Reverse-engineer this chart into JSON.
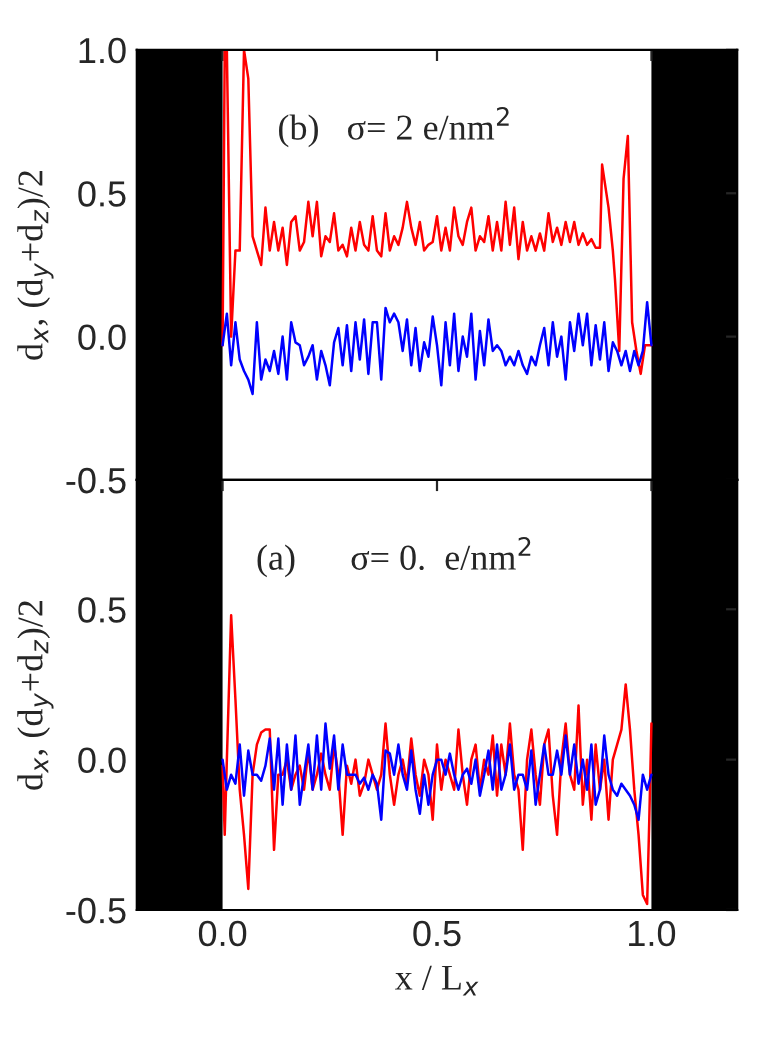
{
  "chart_data": [
    {
      "type": "line",
      "annotations": [
        "(b)   σ= 2 e/nm$^{2}$"
      ],
      "ylabel": "d$_{x}$, (d$_{y}$+d$_{z}$)/2",
      "xlim": [
        -0.2,
        1.2
      ],
      "xticks": [
        0.0,
        0.5,
        1.0
      ],
      "ylim": [
        -0.5,
        1.0
      ],
      "yticks": [
        {
          "value": -0.5,
          "label": "-0.5"
        },
        {
          "value": 0.0,
          "label": "0.0"
        },
        {
          "value": 0.5,
          "label": "0.5"
        },
        {
          "value": 1.0,
          "label": "1.0"
        }
      ],
      "tick_labels": "y",
      "grid": false,
      "legend": false,
      "bands": [
        {
          "axis": "x",
          "from": -0.2,
          "to": 0.0,
          "color": "#000000"
        },
        {
          "axis": "x",
          "from": 1.0,
          "to": 1.2,
          "color": "#000000"
        }
      ],
      "x": [
        0.0,
        0.01,
        0.02,
        0.03,
        0.04,
        0.05,
        0.06,
        0.07,
        0.08,
        0.09,
        0.1,
        0.11,
        0.12,
        0.13,
        0.14,
        0.15,
        0.16,
        0.17,
        0.18,
        0.19,
        0.2,
        0.21,
        0.22,
        0.23,
        0.24,
        0.25,
        0.26,
        0.27,
        0.28,
        0.29,
        0.3,
        0.31,
        0.32,
        0.33,
        0.34,
        0.35,
        0.36,
        0.37,
        0.38,
        0.39,
        0.4,
        0.41,
        0.42,
        0.43,
        0.44,
        0.45,
        0.46,
        0.47,
        0.48,
        0.49,
        0.5,
        0.51,
        0.52,
        0.53,
        0.54,
        0.55,
        0.56,
        0.57,
        0.58,
        0.59,
        0.6,
        0.61,
        0.62,
        0.63,
        0.64,
        0.65,
        0.66,
        0.67,
        0.68,
        0.69,
        0.7,
        0.71,
        0.72,
        0.73,
        0.74,
        0.75,
        0.76,
        0.77,
        0.78,
        0.79,
        0.8,
        0.81,
        0.82,
        0.83,
        0.84,
        0.85,
        0.86,
        0.87,
        0.88,
        0.89,
        0.9,
        0.91,
        0.92,
        0.93,
        0.94,
        0.95,
        0.96,
        0.97,
        0.98,
        0.99,
        1.0
      ],
      "series": [
        {
          "color": "#ff0000",
          "x": [
            0.0,
            0.005,
            0.01,
            0.02,
            0.03,
            0.04,
            0.05,
            0.06,
            0.07,
            0.08,
            0.09,
            0.1,
            0.11,
            0.12,
            0.13,
            0.14,
            0.15,
            0.16,
            0.17,
            0.18,
            0.19,
            0.2,
            0.21,
            0.22,
            0.23,
            0.24,
            0.25,
            0.26,
            0.27,
            0.28,
            0.29,
            0.3,
            0.31,
            0.32,
            0.33,
            0.34,
            0.35,
            0.36,
            0.37,
            0.38,
            0.39,
            0.4,
            0.41,
            0.42,
            0.43,
            0.44,
            0.45,
            0.46,
            0.47,
            0.48,
            0.49,
            0.5,
            0.51,
            0.52,
            0.53,
            0.54,
            0.55,
            0.56,
            0.57,
            0.58,
            0.59,
            0.6,
            0.61,
            0.62,
            0.63,
            0.64,
            0.65,
            0.66,
            0.67,
            0.68,
            0.69,
            0.7,
            0.71,
            0.72,
            0.73,
            0.74,
            0.75,
            0.76,
            0.77,
            0.78,
            0.79,
            0.8,
            0.81,
            0.82,
            0.83,
            0.84,
            0.85,
            0.86,
            0.87,
            0.88,
            0.885,
            0.9,
            0.91,
            0.915,
            0.925,
            0.935,
            0.945,
            0.955,
            0.965,
            0.975,
            0.985,
            1.0
          ],
          "values": [
            -0.03,
            1.0,
            1.0,
            0.0,
            0.3,
            0.3,
            1.0,
            0.9,
            0.35,
            0.3,
            0.25,
            0.45,
            0.3,
            0.4,
            0.3,
            0.38,
            0.25,
            0.4,
            0.42,
            0.3,
            0.33,
            0.47,
            0.35,
            0.47,
            0.28,
            0.35,
            0.33,
            0.43,
            0.3,
            0.32,
            0.28,
            0.38,
            0.3,
            0.4,
            0.32,
            0.3,
            0.42,
            0.3,
            0.28,
            0.43,
            0.3,
            0.35,
            0.32,
            0.38,
            0.47,
            0.38,
            0.32,
            0.4,
            0.3,
            0.32,
            0.33,
            0.42,
            0.3,
            0.38,
            0.3,
            0.45,
            0.35,
            0.32,
            0.4,
            0.45,
            0.3,
            0.35,
            0.33,
            0.42,
            0.3,
            0.4,
            0.3,
            0.47,
            0.32,
            0.45,
            0.27,
            0.4,
            0.3,
            0.35,
            0.3,
            0.36,
            0.3,
            0.43,
            0.33,
            0.38,
            0.32,
            0.4,
            0.33,
            0.4,
            0.32,
            0.36,
            0.32,
            0.34,
            0.31,
            0.31,
            0.6,
            0.45,
            0.3,
            0.2,
            -0.05,
            0.55,
            0.7,
            0.05,
            -0.05,
            -0.13,
            -0.03,
            -0.03
          ]
        },
        {
          "color": "#0000ff",
          "values": [
            -0.03,
            0.08,
            -0.1,
            0.05,
            -0.08,
            -0.12,
            -0.15,
            -0.2,
            0.05,
            -0.15,
            -0.08,
            -0.12,
            -0.05,
            -0.13,
            0.0,
            -0.15,
            0.05,
            -0.02,
            -0.03,
            -0.1,
            -0.07,
            -0.03,
            -0.15,
            -0.05,
            -0.1,
            -0.17,
            -0.02,
            0.03,
            -0.1,
            0.04,
            -0.12,
            0.05,
            -0.08,
            0.06,
            -0.13,
            0.05,
            0.05,
            -0.15,
            0.1,
            0.05,
            0.08,
            0.05,
            -0.05,
            0.06,
            -0.1,
            0.03,
            -0.12,
            -0.02,
            -0.07,
            0.07,
            -0.03,
            -0.17,
            0.05,
            -0.1,
            0.08,
            -0.12,
            0.0,
            -0.07,
            0.08,
            -0.15,
            0.02,
            -0.1,
            0.06,
            -0.05,
            -0.03,
            -0.05,
            -0.1,
            -0.07,
            -0.1,
            -0.05,
            -0.1,
            -0.13,
            -0.07,
            -0.1,
            -0.03,
            0.03,
            -0.1,
            0.05,
            -0.07,
            0.0,
            -0.15,
            0.05,
            -0.05,
            0.08,
            -0.03,
            0.08,
            -0.1,
            0.04,
            -0.08,
            0.05,
            -0.12,
            -0.02,
            -0.05,
            -0.1,
            -0.05,
            -0.12,
            -0.05,
            -0.1,
            -0.05,
            0.12,
            -0.03
          ]
        }
      ]
    },
    {
      "type": "line",
      "annotations": [
        "(a)      σ= 0.  e/nm$^{2}$"
      ],
      "ylabel": "d$_{x}$, (d$_{y}$+d$_{z}$)/2",
      "xlabel": "x / L$_{x}$",
      "xlim": [
        -0.2,
        1.2
      ],
      "xticks": [
        {
          "value": 0.0,
          "label": "0.0"
        },
        {
          "value": 0.5,
          "label": "0.5"
        },
        {
          "value": 1.0,
          "label": "1.0"
        }
      ],
      "ylim": [
        -0.5,
        0.93
      ],
      "yticks": [
        {
          "value": -0.5,
          "label": "-0.5"
        },
        {
          "value": 0.0,
          "label": "0.0"
        },
        {
          "value": 0.5,
          "label": "0.5"
        }
      ],
      "grid": false,
      "legend": false,
      "bands": [
        {
          "axis": "x",
          "from": -0.2,
          "to": 0.0,
          "color": "#000000"
        },
        {
          "axis": "x",
          "from": 1.0,
          "to": 1.2,
          "color": "#000000"
        }
      ],
      "x": [
        0.0,
        0.01,
        0.02,
        0.03,
        0.04,
        0.05,
        0.06,
        0.07,
        0.08,
        0.09,
        0.1,
        0.11,
        0.12,
        0.13,
        0.14,
        0.15,
        0.16,
        0.17,
        0.18,
        0.19,
        0.2,
        0.21,
        0.22,
        0.23,
        0.24,
        0.25,
        0.26,
        0.27,
        0.28,
        0.29,
        0.3,
        0.31,
        0.32,
        0.33,
        0.34,
        0.35,
        0.36,
        0.37,
        0.38,
        0.39,
        0.4,
        0.41,
        0.42,
        0.43,
        0.44,
        0.45,
        0.46,
        0.47,
        0.48,
        0.49,
        0.5,
        0.51,
        0.52,
        0.53,
        0.54,
        0.55,
        0.56,
        0.57,
        0.58,
        0.59,
        0.6,
        0.61,
        0.62,
        0.63,
        0.64,
        0.65,
        0.66,
        0.67,
        0.68,
        0.69,
        0.7,
        0.71,
        0.72,
        0.73,
        0.74,
        0.75,
        0.76,
        0.77,
        0.78,
        0.79,
        0.8,
        0.81,
        0.82,
        0.83,
        0.84,
        0.85,
        0.86,
        0.87,
        0.88,
        0.89,
        0.9,
        0.91,
        0.92,
        0.93,
        0.94,
        0.95,
        0.96,
        0.97,
        0.98,
        0.99,
        1.0
      ],
      "series": [
        {
          "color": "#ff0000",
          "x": [
            0.0,
            0.005,
            0.01,
            0.02,
            0.03,
            0.04,
            0.05,
            0.06,
            0.07,
            0.08,
            0.09,
            0.1,
            0.11,
            0.12,
            0.13,
            0.14,
            0.15,
            0.16,
            0.17,
            0.18,
            0.19,
            0.2,
            0.21,
            0.22,
            0.23,
            0.24,
            0.25,
            0.26,
            0.27,
            0.28,
            0.29,
            0.3,
            0.31,
            0.32,
            0.33,
            0.34,
            0.35,
            0.36,
            0.37,
            0.38,
            0.39,
            0.4,
            0.41,
            0.42,
            0.43,
            0.44,
            0.45,
            0.46,
            0.47,
            0.48,
            0.49,
            0.5,
            0.51,
            0.52,
            0.53,
            0.54,
            0.55,
            0.56,
            0.57,
            0.58,
            0.59,
            0.6,
            0.61,
            0.62,
            0.63,
            0.64,
            0.65,
            0.66,
            0.67,
            0.68,
            0.69,
            0.7,
            0.71,
            0.72,
            0.73,
            0.74,
            0.75,
            0.76,
            0.77,
            0.78,
            0.79,
            0.8,
            0.81,
            0.82,
            0.83,
            0.84,
            0.85,
            0.86,
            0.87,
            0.88,
            0.89,
            0.9,
            0.91,
            0.92,
            0.93,
            0.94,
            0.95,
            0.96,
            0.97,
            0.98,
            0.99,
            0.995,
            1.0
          ],
          "values": [
            -0.02,
            -0.25,
            0.0,
            0.48,
            0.2,
            -0.1,
            -0.25,
            -0.43,
            -0.05,
            0.05,
            0.09,
            0.1,
            0.1,
            -0.3,
            -0.05,
            -0.05,
            0.0,
            -0.1,
            -0.05,
            -0.02,
            -0.1,
            0.03,
            -0.1,
            -0.05,
            0.02,
            -0.05,
            -0.1,
            0.05,
            -0.05,
            -0.25,
            -0.02,
            -0.08,
            0.0,
            -0.12,
            -0.08,
            0.0,
            -0.05,
            -0.1,
            -0.05,
            0.12,
            -0.05,
            -0.15,
            -0.05,
            0.0,
            -0.08,
            0.07,
            -0.05,
            -0.12,
            0.0,
            -0.05,
            -0.2,
            0.05,
            -0.1,
            0.0,
            -0.05,
            -0.1,
            0.1,
            -0.05,
            -0.15,
            0.0,
            0.05,
            -0.1,
            0.0,
            -0.05,
            0.08,
            -0.12,
            0.05,
            -0.05,
            0.12,
            -0.05,
            -0.1,
            -0.3,
            0.0,
            0.1,
            -0.05,
            -0.15,
            0.05,
            0.1,
            -0.12,
            -0.25,
            0.0,
            0.12,
            -0.05,
            -0.1,
            0.18,
            -0.15,
            0.0,
            -0.2,
            0.05,
            -0.1,
            0.0,
            -0.2,
            0.0,
            0.05,
            0.1,
            0.25,
            0.1,
            -0.1,
            -0.25,
            -0.45,
            -0.48,
            -0.2,
            0.12
          ]
        },
        {
          "color": "#0000ff",
          "values": [
            0.0,
            -0.1,
            -0.05,
            -0.08,
            0.05,
            -0.12,
            0.03,
            -0.05,
            -0.05,
            -0.07,
            -0.02,
            0.07,
            -0.1,
            0.07,
            -0.15,
            0.05,
            -0.1,
            0.08,
            -0.15,
            -0.05,
            0.05,
            -0.1,
            0.08,
            -0.1,
            0.12,
            -0.03,
            0.08,
            -0.1,
            0.05,
            -0.05,
            -0.05,
            -0.05,
            -0.08,
            -0.06,
            -0.1,
            -0.05,
            -0.08,
            -0.2,
            0.03,
            0.02,
            -0.05,
            0.05,
            -0.05,
            -0.1,
            0.03,
            -0.1,
            -0.18,
            -0.05,
            -0.15,
            -0.05,
            0.0,
            0.0,
            -0.05,
            0.02,
            -0.05,
            -0.1,
            -0.05,
            -0.03,
            -0.08,
            0.0,
            -0.12,
            -0.05,
            0.03,
            -0.1,
            0.05,
            -0.1,
            -0.05,
            0.05,
            -0.1,
            -0.05,
            -0.05,
            -0.1,
            0.03,
            -0.15,
            -0.05,
            0.05,
            -0.05,
            -0.05,
            0.03,
            -0.05,
            0.08,
            -0.05,
            0.05,
            -0.08,
            0.0,
            -0.1,
            0.05,
            -0.15,
            -0.1,
            0.08,
            -0.05,
            -0.1,
            -0.12,
            -0.08,
            -0.1,
            -0.12,
            -0.15,
            -0.2,
            -0.05,
            -0.1,
            -0.05
          ]
        }
      ]
    }
  ]
}
